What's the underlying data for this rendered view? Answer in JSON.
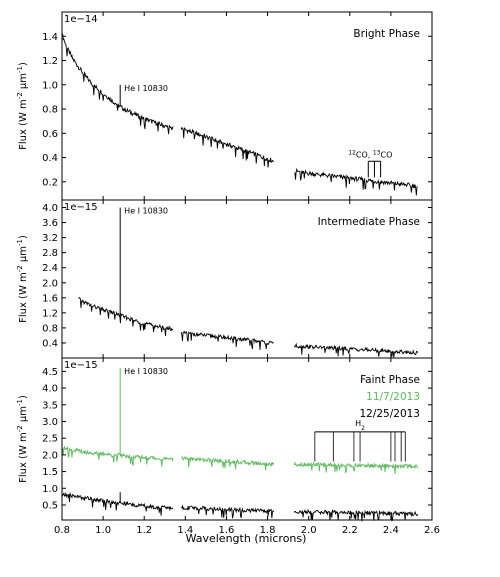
{
  "chart_data": {
    "type": "line",
    "xlabel": "Wavelength (microns)",
    "ylabel_html_parts": [
      "Flux (W m",
      "-2",
      " μm",
      "-1",
      ")"
    ],
    "ylabel": "Flux (W m-2 μm-1)",
    "xlim": [
      0.8,
      2.6
    ],
    "x_ticks": [
      0.8,
      1.0,
      1.2,
      1.4,
      1.6,
      1.8,
      2.0,
      2.2,
      2.4,
      2.6
    ],
    "x_tick_labels": [
      "0.8",
      "1.0",
      "1.2",
      "1.4",
      "1.6",
      "1.8",
      "2.0",
      "2.2",
      "2.4",
      "2.6"
    ],
    "panels": [
      {
        "id": "bright",
        "title": "Bright Phase",
        "scale_label": "1e−14",
        "ylim": [
          0.05,
          1.6
        ],
        "y_ticks": [
          0.2,
          0.4,
          0.6,
          0.8,
          1.0,
          1.2,
          1.4
        ],
        "y_tick_labels": [
          "0.2",
          "0.4",
          "0.6",
          "0.8",
          "1.0",
          "1.2",
          "1.4"
        ],
        "annotations": [
          {
            "text": "He I 10830",
            "x": 1.083,
            "y": 1.0
          },
          {
            "text": "12CO, 13CO",
            "parts": [
              "12",
              "CO, ",
              "13",
              "CO"
            ],
            "x": 2.3,
            "y": 0.32
          }
        ],
        "series": [
          {
            "color": "#000000",
            "segments": [
              {
                "x": [
                  0.8,
                  0.82,
                  0.85,
                  0.9,
                  0.95,
                  1.0,
                  1.05,
                  1.1,
                  1.15,
                  1.2,
                  1.25,
                  1.3,
                  1.34
                ],
                "y": [
                  1.42,
                  1.32,
                  1.22,
                  1.1,
                  1.0,
                  0.93,
                  0.86,
                  0.8,
                  0.76,
                  0.72,
                  0.69,
                  0.66,
                  0.64
                ]
              },
              {
                "x": [
                  1.38,
                  1.45,
                  1.5,
                  1.55,
                  1.6,
                  1.65,
                  1.7,
                  1.75,
                  1.8,
                  1.83
                ],
                "y": [
                  0.64,
                  0.6,
                  0.57,
                  0.54,
                  0.51,
                  0.48,
                  0.45,
                  0.42,
                  0.39,
                  0.37
                ]
              },
              {
                "x": [
                  1.93,
                  2.0,
                  2.1,
                  2.2,
                  2.3,
                  2.4,
                  2.5,
                  2.53
                ],
                "y": [
                  0.29,
                  0.27,
                  0.25,
                  0.23,
                  0.21,
                  0.19,
                  0.17,
                  0.16
                ]
              }
            ]
          }
        ]
      },
      {
        "id": "intermediate",
        "title": "Intermediate Phase",
        "scale_label": "1e−15",
        "ylim": [
          0.0,
          4.2
        ],
        "y_ticks": [
          0.4,
          0.8,
          1.2,
          1.6,
          2.0,
          2.4,
          2.8,
          3.2,
          3.6,
          4.0
        ],
        "y_tick_labels": [
          "0.4",
          "0.8",
          "1.2",
          "1.6",
          "2.0",
          "2.4",
          "2.8",
          "3.2",
          "3.6",
          "4.0"
        ],
        "annotations": [
          {
            "text": "He I 10830",
            "x": 1.083,
            "y": 4.0
          }
        ],
        "series": [
          {
            "color": "#000000",
            "segments": [
              {
                "x": [
                  0.88,
                  0.9,
                  0.95,
                  1.0,
                  1.05,
                  1.1,
                  1.15,
                  1.2,
                  1.25,
                  1.3,
                  1.34
                ],
                "y": [
                  1.58,
                  1.5,
                  1.38,
                  1.28,
                  1.2,
                  1.1,
                  1.0,
                  0.92,
                  0.86,
                  0.8,
                  0.76
                ]
              },
              {
                "x": [
                  1.38,
                  1.45,
                  1.5,
                  1.55,
                  1.6,
                  1.65,
                  1.7,
                  1.75,
                  1.8,
                  1.83
                ],
                "y": [
                  0.66,
                  0.63,
                  0.6,
                  0.57,
                  0.54,
                  0.51,
                  0.48,
                  0.45,
                  0.41,
                  0.38
                ]
              },
              {
                "x": [
                  1.93,
                  2.0,
                  2.1,
                  2.2,
                  2.3,
                  2.4,
                  2.5,
                  2.53
                ],
                "y": [
                  0.32,
                  0.3,
                  0.27,
                  0.24,
                  0.21,
                  0.18,
                  0.15,
                  0.13
                ]
              }
            ]
          }
        ]
      },
      {
        "id": "faint",
        "title": "Faint Phase",
        "scale_label": "1e−15",
        "ylim": [
          0.05,
          4.9
        ],
        "y_ticks": [
          0.5,
          1.0,
          1.5,
          2.0,
          2.5,
          3.0,
          3.5,
          4.0,
          4.5
        ],
        "y_tick_labels": [
          "0.5",
          "1.0",
          "1.5",
          "2.0",
          "2.5",
          "3.0",
          "3.5",
          "4.0",
          "4.5"
        ],
        "legend": [
          {
            "label": "11/7/2013",
            "color": "#5cb85c"
          },
          {
            "label": "12/25/2013",
            "color": "#000000"
          }
        ],
        "annotations": [
          {
            "text": "He I 10830",
            "x": 1.083,
            "y": 4.6
          },
          {
            "text": "H2",
            "parts": [
              "H",
              "2"
            ],
            "x": 2.25,
            "y": 2.75
          }
        ],
        "series": [
          {
            "name": "11/7/2013",
            "color": "#5cb85c",
            "segments": [
              {
                "x": [
                  0.8,
                  0.85,
                  0.9,
                  0.95,
                  1.0,
                  1.05,
                  1.1,
                  1.15,
                  1.2,
                  1.25,
                  1.3,
                  1.34
                ],
                "y": [
                  2.25,
                  2.15,
                  2.1,
                  2.05,
                  2.02,
                  2.0,
                  1.98,
                  1.95,
                  1.93,
                  1.9,
                  1.88,
                  1.86
                ]
              },
              {
                "x": [
                  1.38,
                  1.45,
                  1.5,
                  1.55,
                  1.6,
                  1.65,
                  1.7,
                  1.75,
                  1.8,
                  1.83
                ],
                "y": [
                  1.9,
                  1.87,
                  1.85,
                  1.83,
                  1.81,
                  1.79,
                  1.77,
                  1.75,
                  1.73,
                  1.72
                ]
              },
              {
                "x": [
                  1.93,
                  2.0,
                  2.1,
                  2.2,
                  2.3,
                  2.4,
                  2.5,
                  2.53
                ],
                "y": [
                  1.72,
                  1.71,
                  1.7,
                  1.69,
                  1.68,
                  1.67,
                  1.66,
                  1.65
                ]
              }
            ]
          },
          {
            "name": "12/25/2013",
            "color": "#000000",
            "segments": [
              {
                "x": [
                  0.8,
                  0.85,
                  0.9,
                  0.95,
                  1.0,
                  1.05,
                  1.1,
                  1.15,
                  1.2,
                  1.25,
                  1.3,
                  1.34
                ],
                "y": [
                  0.8,
                  0.78,
                  0.72,
                  0.68,
                  0.62,
                  0.58,
                  0.55,
                  0.5,
                  0.47,
                  0.44,
                  0.42,
                  0.4
                ]
              },
              {
                "x": [
                  1.38,
                  1.45,
                  1.5,
                  1.55,
                  1.6,
                  1.65,
                  1.7,
                  1.75,
                  1.8,
                  1.83
                ],
                "y": [
                  0.42,
                  0.41,
                  0.4,
                  0.38,
                  0.36,
                  0.35,
                  0.34,
                  0.33,
                  0.32,
                  0.31
                ]
              },
              {
                "x": [
                  1.93,
                  2.0,
                  2.1,
                  2.2,
                  2.3,
                  2.4,
                  2.5,
                  2.53
                ],
                "y": [
                  0.3,
                  0.29,
                  0.28,
                  0.27,
                  0.26,
                  0.25,
                  0.24,
                  0.23
                ]
              }
            ]
          }
        ]
      }
    ]
  }
}
